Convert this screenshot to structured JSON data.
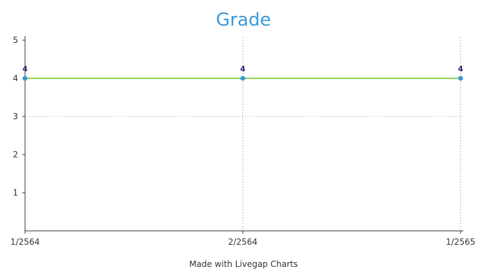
{
  "chart_data": {
    "type": "line",
    "title": "Grade",
    "xlabel": "",
    "ylabel": "",
    "categories": [
      "1/2564",
      "2/2564",
      "1/2565"
    ],
    "series": [
      {
        "values": [
          4,
          4,
          4
        ]
      }
    ],
    "data_labels": [
      "4",
      "4",
      "4"
    ],
    "yticks": [
      "1",
      "2",
      "3",
      "4",
      "5"
    ],
    "ylim": [
      0,
      5
    ],
    "grid": true,
    "legend": "none",
    "colors": {
      "line": "#8fd14f",
      "point": "#3a9ad9",
      "title": "#3a9ad9",
      "label": "#3a2a78"
    }
  },
  "footer": {
    "credit": "Made with Livegap Charts"
  }
}
